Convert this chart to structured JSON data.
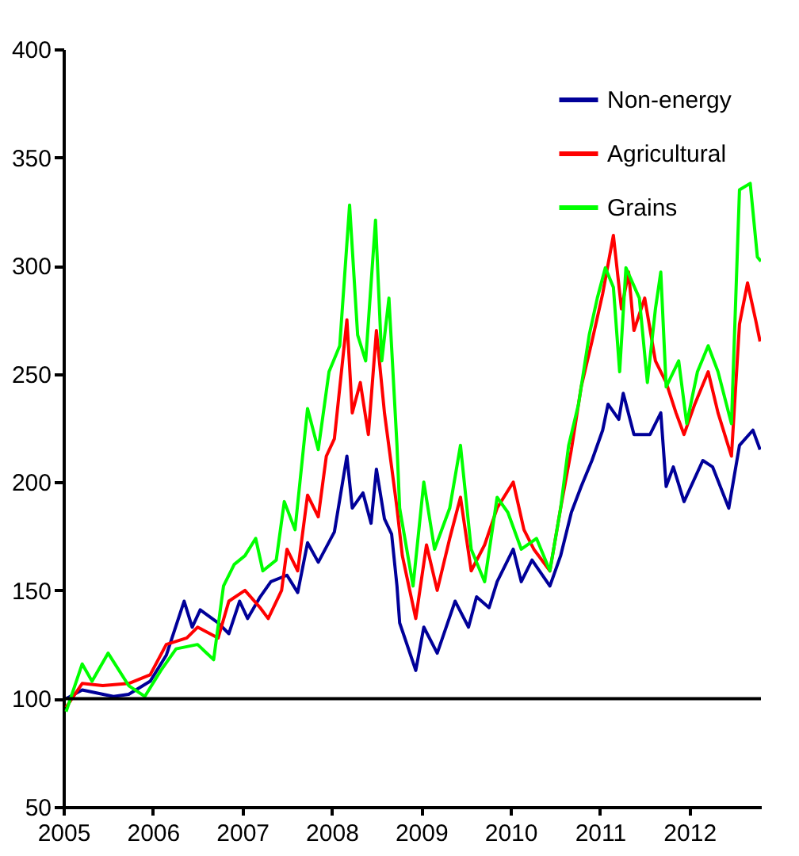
{
  "chart_data": {
    "type": "line",
    "xlim": [
      2005,
      2012.8
    ],
    "xticks": [
      2005,
      2006,
      2007,
      2008,
      2009,
      2010,
      2011,
      2012
    ],
    "ylim": [
      50,
      400
    ],
    "yticks": [
      50,
      100,
      150,
      200,
      250,
      300,
      350,
      400
    ],
    "grid": false,
    "legend": "top right",
    "marker": "none",
    "line_style": "solid",
    "ref_lines": [
      {
        "axis": "y",
        "value": 100,
        "color": "#000000"
      }
    ],
    "series": [
      {
        "name": "Non-energy",
        "color": "#000099",
        "x": [
          2005.03,
          2005.21,
          2005.56,
          2005.73,
          2005.97,
          2006.15,
          2006.35,
          2006.44,
          2006.53,
          2006.73,
          2006.85,
          2006.97,
          2007.06,
          2007.2,
          2007.32,
          2007.5,
          2007.62,
          2007.73,
          2007.85,
          2008.03,
          2008.17,
          2008.23,
          2008.35,
          2008.44,
          2008.5,
          2008.59,
          2008.67,
          2008.73,
          2008.76,
          2008.94,
          2009.03,
          2009.18,
          2009.38,
          2009.53,
          2009.62,
          2009.76,
          2009.85,
          2010.03,
          2010.12,
          2010.24,
          2010.44,
          2010.56,
          2010.68,
          2010.79,
          2010.91,
          2011.03,
          2011.09,
          2011.21,
          2011.26,
          2011.38,
          2011.56,
          2011.68,
          2011.74,
          2011.82,
          2011.94,
          2012.15,
          2012.26,
          2012.44,
          2012.56,
          2012.71,
          2012.79
        ],
        "values": [
          100,
          104,
          101,
          102,
          108,
          120,
          145,
          133,
          141,
          135,
          130,
          145,
          137,
          147,
          154,
          157,
          149,
          172,
          163,
          177,
          212,
          188,
          195,
          181,
          206,
          183,
          176,
          152,
          135,
          113,
          133,
          121,
          145,
          133,
          147,
          142,
          154,
          169,
          154,
          164,
          152,
          166,
          186,
          198,
          210,
          224,
          236,
          229,
          241,
          222,
          222,
          232,
          198,
          207,
          191,
          210,
          207,
          188,
          217,
          224,
          215
        ]
      },
      {
        "name": "Agricultural",
        "color": "#ff0000",
        "x": [
          2005.03,
          2005.21,
          2005.44,
          2005.73,
          2005.97,
          2006.15,
          2006.38,
          2006.5,
          2006.73,
          2006.85,
          2007.03,
          2007.2,
          2007.29,
          2007.44,
          2007.5,
          2007.62,
          2007.73,
          2007.85,
          2007.94,
          2008.03,
          2008.17,
          2008.23,
          2008.32,
          2008.41,
          2008.5,
          2008.59,
          2008.67,
          2008.73,
          2008.79,
          2008.94,
          2009.06,
          2009.18,
          2009.32,
          2009.44,
          2009.56,
          2009.71,
          2009.85,
          2010.03,
          2010.15,
          2010.26,
          2010.44,
          2010.56,
          2010.68,
          2010.79,
          2010.91,
          2011.03,
          2011.15,
          2011.24,
          2011.32,
          2011.38,
          2011.5,
          2011.62,
          2011.74,
          2011.85,
          2011.94,
          2012.06,
          2012.21,
          2012.32,
          2012.47,
          2012.56,
          2012.65,
          2012.74,
          2012.79
        ],
        "values": [
          96,
          107,
          106,
          107,
          111,
          125,
          128,
          133,
          128,
          145,
          150,
          142,
          137,
          150,
          169,
          159,
          194,
          184,
          212,
          220,
          275,
          232,
          246,
          222,
          270,
          232,
          207,
          188,
          166,
          137,
          171,
          150,
          174,
          193,
          159,
          171,
          188,
          200,
          178,
          169,
          159,
          188,
          215,
          244,
          265,
          287,
          314,
          280,
          297,
          270,
          285,
          256,
          246,
          232,
          222,
          236,
          251,
          232,
          212,
          273,
          292,
          275,
          265
        ]
      },
      {
        "name": "Grains",
        "color": "#00ff00",
        "x": [
          2005.03,
          2005.21,
          2005.32,
          2005.5,
          2005.73,
          2005.91,
          2006.09,
          2006.26,
          2006.5,
          2006.68,
          2006.79,
          2006.91,
          2007.03,
          2007.15,
          2007.23,
          2007.38,
          2007.47,
          2007.59,
          2007.73,
          2007.85,
          2007.97,
          2008.09,
          2008.2,
          2008.29,
          2008.38,
          2008.49,
          2008.56,
          2008.64,
          2008.73,
          2008.76,
          2008.91,
          2009.03,
          2009.15,
          2009.32,
          2009.44,
          2009.56,
          2009.71,
          2009.85,
          2009.97,
          2010.12,
          2010.29,
          2010.44,
          2010.56,
          2010.65,
          2010.76,
          2010.88,
          2010.97,
          2011.06,
          2011.15,
          2011.22,
          2011.29,
          2011.44,
          2011.53,
          2011.62,
          2011.68,
          2011.74,
          2011.88,
          2011.97,
          2012.09,
          2012.21,
          2012.32,
          2012.47,
          2012.56,
          2012.68,
          2012.76,
          2012.8
        ],
        "values": [
          94,
          116,
          108,
          121,
          106,
          101,
          113,
          123,
          125,
          118,
          152,
          162,
          166,
          174,
          159,
          164,
          191,
          178,
          234,
          215,
          251,
          263,
          328,
          268,
          256,
          321,
          256,
          285,
          217,
          188,
          152,
          200,
          169,
          188,
          217,
          169,
          154,
          193,
          186,
          169,
          174,
          159,
          188,
          217,
          236,
          268,
          285,
          299,
          290,
          251,
          299,
          285,
          246,
          280,
          297,
          244,
          256,
          227,
          251,
          263,
          251,
          227,
          335,
          338,
          304,
          302
        ]
      }
    ]
  }
}
